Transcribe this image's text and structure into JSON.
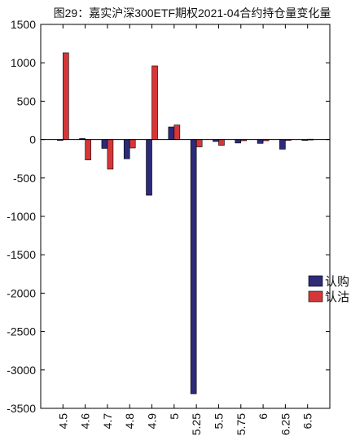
{
  "chart_data": {
    "type": "bar",
    "title": "图29：嘉实沪深300ETF期权2021-04合约持仓量变化量",
    "xlabel": "",
    "ylabel": "",
    "ylim": [
      -3500,
      1500
    ],
    "yticks": [
      1500,
      1000,
      500,
      0,
      -500,
      -1000,
      -1500,
      -2000,
      -2500,
      -3000,
      -3500
    ],
    "categories": [
      "4.5",
      "4.6",
      "4.7",
      "4.8",
      "4.9",
      "5",
      "5.25",
      "5.5",
      "5.75",
      "6",
      "6.25",
      "6.5"
    ],
    "series": [
      {
        "name": "认购",
        "color": "#2e2a7a",
        "values": [
          -5,
          15,
          -115,
          -250,
          -725,
          165,
          -3310,
          -25,
          -45,
          -50,
          -125,
          -5
        ]
      },
      {
        "name": "认沽",
        "color": "#d63638",
        "values": [
          1130,
          -265,
          -385,
          -110,
          960,
          190,
          -95,
          -75,
          -15,
          -15,
          -5,
          5
        ]
      }
    ],
    "legend_position": "right",
    "grid": false
  }
}
